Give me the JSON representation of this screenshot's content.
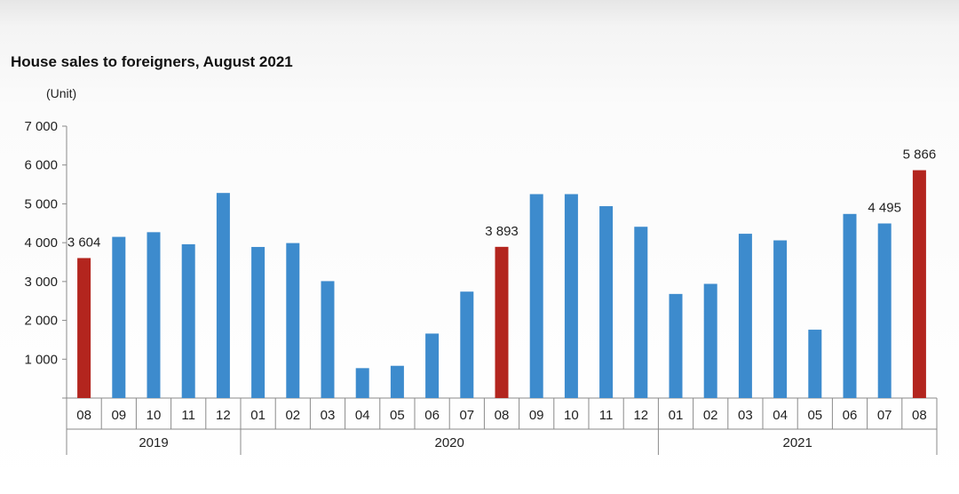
{
  "chart_data": {
    "type": "bar",
    "title": "House sales to foreigners, August 2021",
    "ylabel": "(Unit)",
    "ylim": [
      0,
      7000
    ],
    "yticks": [
      {
        "value": 1000,
        "label": "1 000"
      },
      {
        "value": 2000,
        "label": "2 000"
      },
      {
        "value": 3000,
        "label": "3 000"
      },
      {
        "value": 4000,
        "label": "4 000"
      },
      {
        "value": 5000,
        "label": "5 000"
      },
      {
        "value": 6000,
        "label": "6 000"
      },
      {
        "value": 7000,
        "label": "7 000"
      }
    ],
    "categories": [
      "08",
      "09",
      "10",
      "11",
      "12",
      "01",
      "02",
      "03",
      "04",
      "05",
      "06",
      "07",
      "08",
      "09",
      "10",
      "11",
      "12",
      "01",
      "02",
      "03",
      "04",
      "05",
      "06",
      "07",
      "08"
    ],
    "values": [
      3604,
      4150,
      4270,
      3960,
      5280,
      3890,
      3990,
      3010,
      770,
      830,
      1660,
      2740,
      3893,
      5250,
      5250,
      4940,
      4410,
      2680,
      2940,
      4230,
      4060,
      1760,
      4740,
      4495,
      5866
    ],
    "highlight": [
      0,
      12,
      24
    ],
    "data_labels": [
      {
        "index": 0,
        "text": "3 604"
      },
      {
        "index": 12,
        "text": "3 893"
      },
      {
        "index": 23,
        "text": "4 495"
      },
      {
        "index": 24,
        "text": "5 866"
      }
    ],
    "groups": [
      {
        "label": "2019",
        "start": 0,
        "end": 4
      },
      {
        "label": "2020",
        "start": 5,
        "end": 16
      },
      {
        "label": "2021",
        "start": 17,
        "end": 24
      }
    ],
    "colors": {
      "bar": "#3d8bcd",
      "highlight": "#b3251e"
    },
    "grid": false,
    "legend": "none"
  }
}
